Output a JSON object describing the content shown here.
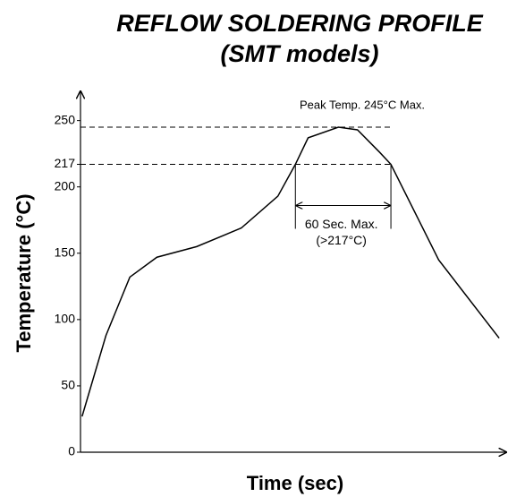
{
  "chart_data": {
    "type": "line",
    "title": "REFLOW SOLDERING PROFILE",
    "subtitle": "(SMT models)",
    "y_label": "Temperature (°C)",
    "x_label": "Time (sec)",
    "x": [
      1,
      16,
      31,
      48,
      73,
      101,
      124,
      135,
      143,
      162,
      174,
      188,
      195,
      225,
      263
    ],
    "values": [
      27,
      88,
      132,
      147,
      155,
      169,
      193,
      217,
      237,
      245,
      243,
      226,
      217,
      145,
      86
    ],
    "color": "#000000",
    "xlim": [
      0,
      268
    ],
    "ylim": [
      0,
      270
    ],
    "yticks": [
      0,
      50,
      100,
      150,
      200,
      217,
      250
    ],
    "peak": {
      "value": 245,
      "label": "Peak Temp. 245°C Max."
    },
    "window": {
      "start": 135,
      "end": 195,
      "level": 217,
      "label": "60 Sec. Max.",
      "sublabel": "(>217°C)"
    }
  }
}
